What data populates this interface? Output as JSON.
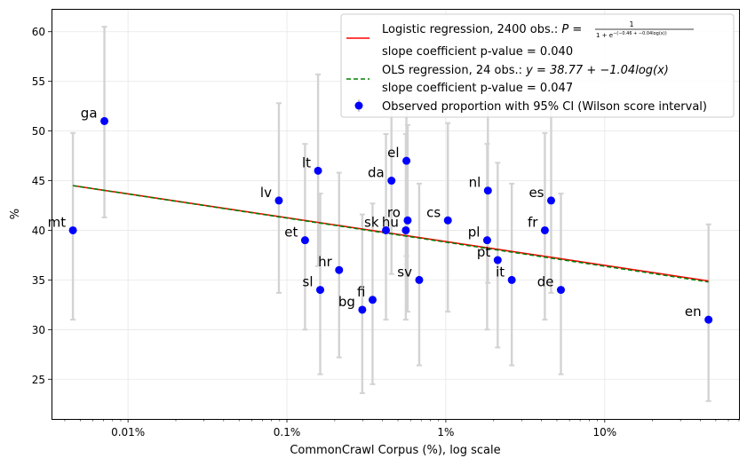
{
  "chart_data": {
    "type": "scatter",
    "xscale": "log",
    "xlabel": "CommonCrawl Corpus (%), log scale",
    "ylabel": "%",
    "xlim": [
      0.0033,
      70
    ],
    "ylim": [
      21,
      62.3
    ],
    "yticks": [
      25,
      30,
      35,
      40,
      45,
      50,
      55,
      60
    ],
    "xticks": [
      {
        "value": 0.01,
        "label": "0.01%"
      },
      {
        "value": 0.1,
        "label": "0.1%"
      },
      {
        "value": 1,
        "label": "1%"
      },
      {
        "value": 10,
        "label": "10%"
      }
    ],
    "grid": true,
    "legend": {
      "position": "top-right",
      "logistic": {
        "line1": "Logistic regression, 2400 obs.: ",
        "formula": "P = 1 / (1 + e^(−(−0.46 + −0.04 log(x))))",
        "formula_lhs": "P =",
        "formula_num": "1",
        "formula_den": "1 + e",
        "formula_exp": "−(−0.46 + −0.04log(x))",
        "line2": "slope coefficient p-value = 0.040"
      },
      "ols": {
        "line1": "OLS regression, 24 obs.: ",
        "formula": "y = 38.77 + −1.04log(x)",
        "line2": "slope coefficient p-value = 0.047"
      },
      "observed": "Observed proportion with 95% CI (Wilson score interval)"
    },
    "colors": {
      "logistic": "#ff0000",
      "ols": "#008000",
      "points": "#0000ff",
      "errorbars": "#d3d3d3"
    },
    "logistic_line": {
      "x": [
        0.0045,
        45
      ],
      "y": [
        44.5,
        34.9
      ]
    },
    "ols_line": {
      "x": [
        0.0045,
        45
      ],
      "y": [
        44.5,
        34.8
      ]
    },
    "points": [
      {
        "label": "mt",
        "x": 0.0045,
        "y": 40,
        "lo": 31,
        "hi": 49.8
      },
      {
        "label": "ga",
        "x": 0.0071,
        "y": 51,
        "lo": 41.3,
        "hi": 60.5
      },
      {
        "label": "lv",
        "x": 0.089,
        "y": 43,
        "lo": 33.7,
        "hi": 52.8
      },
      {
        "label": "et",
        "x": 0.13,
        "y": 39,
        "lo": 30,
        "hi": 48.7
      },
      {
        "label": "lt",
        "x": 0.157,
        "y": 46,
        "lo": 36.4,
        "hi": 55.7
      },
      {
        "label": "sl",
        "x": 0.162,
        "y": 34,
        "lo": 25.5,
        "hi": 43.7
      },
      {
        "label": "hr",
        "x": 0.213,
        "y": 36,
        "lo": 27.2,
        "hi": 45.8
      },
      {
        "label": "bg",
        "x": 0.298,
        "y": 32,
        "lo": 23.6,
        "hi": 41.6
      },
      {
        "label": "fi",
        "x": 0.346,
        "y": 33,
        "lo": 24.5,
        "hi": 42.7
      },
      {
        "label": "sk",
        "x": 0.42,
        "y": 40,
        "lo": 31,
        "hi": 49.7
      },
      {
        "label": "da",
        "x": 0.455,
        "y": 45,
        "lo": 35.6,
        "hi": 54.7
      },
      {
        "label": "hu",
        "x": 0.56,
        "y": 40,
        "lo": 31,
        "hi": 49.7
      },
      {
        "label": "el",
        "x": 0.565,
        "y": 47,
        "lo": 37.4,
        "hi": 56.8
      },
      {
        "label": "ro",
        "x": 0.575,
        "y": 41,
        "lo": 31.8,
        "hi": 50.6
      },
      {
        "label": "sv",
        "x": 0.68,
        "y": 35,
        "lo": 26.4,
        "hi": 44.7
      },
      {
        "label": "cs",
        "x": 1.03,
        "y": 41,
        "lo": 31.8,
        "hi": 50.8
      },
      {
        "label": "pl",
        "x": 1.82,
        "y": 39,
        "lo": 30,
        "hi": 48.7
      },
      {
        "label": "nl",
        "x": 1.84,
        "y": 44,
        "lo": 34.7,
        "hi": 53.7
      },
      {
        "label": "pt",
        "x": 2.12,
        "y": 37,
        "lo": 28.2,
        "hi": 46.8
      },
      {
        "label": "it",
        "x": 2.6,
        "y": 35,
        "lo": 26.4,
        "hi": 44.7
      },
      {
        "label": "fr",
        "x": 4.2,
        "y": 40,
        "lo": 31,
        "hi": 49.8
      },
      {
        "label": "es",
        "x": 4.6,
        "y": 43,
        "lo": 33.7,
        "hi": 52.6
      },
      {
        "label": "de",
        "x": 5.3,
        "y": 34,
        "lo": 25.5,
        "hi": 43.7
      },
      {
        "label": "en",
        "x": 45,
        "y": 31,
        "lo": 22.8,
        "hi": 40.6
      }
    ]
  }
}
